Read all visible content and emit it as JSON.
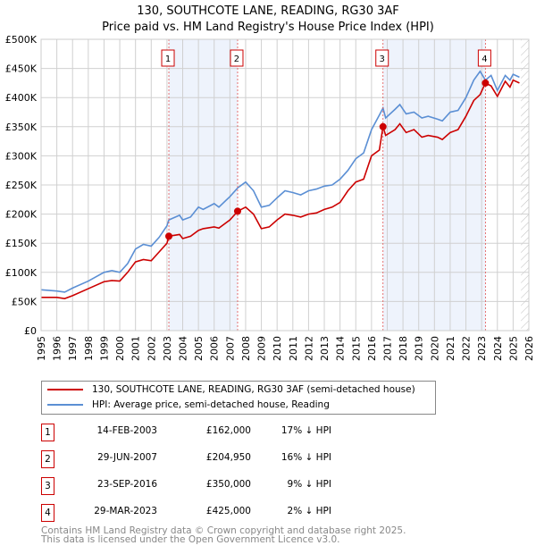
{
  "chart_data": {
    "type": "line",
    "title": "130, SOUTHCOTE LANE, READING, RG30 3AF",
    "subtitle": "Price paid vs. HM Land Registry's House Price Index (HPI)",
    "xlim": [
      1995,
      2026
    ],
    "ylim": [
      0,
      500000
    ],
    "x_ticks": [
      "1995",
      "1996",
      "1997",
      "1998",
      "1999",
      "2000",
      "2001",
      "2002",
      "2003",
      "2004",
      "2005",
      "2006",
      "2007",
      "2008",
      "2009",
      "2010",
      "2011",
      "2012",
      "2013",
      "2014",
      "2015",
      "2016",
      "2017",
      "2018",
      "2019",
      "2020",
      "2021",
      "2022",
      "2023",
      "2024",
      "2025",
      "2026"
    ],
    "y_ticks": [
      {
        "v": 0,
        "label": "£0"
      },
      {
        "v": 50000,
        "label": "£50K"
      },
      {
        "v": 100000,
        "label": "£100K"
      },
      {
        "v": 150000,
        "label": "£150K"
      },
      {
        "v": 200000,
        "label": "£200K"
      },
      {
        "v": 250000,
        "label": "£250K"
      },
      {
        "v": 300000,
        "label": "£300K"
      },
      {
        "v": 350000,
        "label": "£350K"
      },
      {
        "v": 400000,
        "label": "£400K"
      },
      {
        "v": 450000,
        "label": "£450K"
      },
      {
        "v": 500000,
        "label": "£500K"
      }
    ],
    "grid": true,
    "x": [
      1995,
      1996,
      1996.5,
      1997,
      1998,
      1999,
      1999.5,
      2000,
      2000.5,
      2001,
      2001.5,
      2002,
      2002.5,
      2003,
      2003.12,
      2003.8,
      2004,
      2004.5,
      2005,
      2005.3,
      2006,
      2006.3,
      2007,
      2007.5,
      2008,
      2008.5,
      2009,
      2009.5,
      2010,
      2010.5,
      2011,
      2011.5,
      2012,
      2012.5,
      2013,
      2013.5,
      2014,
      2014.5,
      2015,
      2015.5,
      2016,
      2016.5,
      2016.73,
      2016.9,
      2017.5,
      2017.8,
      2018.2,
      2018.7,
      2019.2,
      2019.6,
      2020.2,
      2020.5,
      2021,
      2021.5,
      2022,
      2022.5,
      2022.9,
      2023.24,
      2023.6,
      2024,
      2024.5,
      2024.8,
      2025,
      2025.4
    ],
    "series": [
      {
        "name": "130, SOUTHCOTE LANE, READING, RG30 3AF (semi-detached house)",
        "color": "#cc0000",
        "values": [
          57000,
          57000,
          55000,
          60000,
          72000,
          84000,
          86000,
          85000,
          100000,
          118000,
          122000,
          120000,
          135000,
          150000,
          162000,
          165000,
          158000,
          162000,
          172000,
          175000,
          178000,
          176000,
          190000,
          205000,
          212000,
          200000,
          175000,
          178000,
          190000,
          200000,
          198000,
          195000,
          200000,
          202000,
          208000,
          212000,
          220000,
          240000,
          255000,
          260000,
          300000,
          310000,
          350000,
          335000,
          345000,
          355000,
          340000,
          345000,
          332000,
          335000,
          332000,
          328000,
          340000,
          345000,
          368000,
          395000,
          405000,
          425000,
          420000,
          402000,
          428000,
          418000,
          430000,
          425000
        ]
      },
      {
        "name": "HPI: Average price, semi-detached house, Reading",
        "color": "#5b8fd4",
        "values": [
          70000,
          68000,
          66000,
          73000,
          85000,
          100000,
          103000,
          100000,
          115000,
          140000,
          148000,
          145000,
          160000,
          180000,
          190000,
          198000,
          190000,
          195000,
          212000,
          208000,
          218000,
          212000,
          230000,
          245000,
          255000,
          240000,
          212000,
          215000,
          228000,
          240000,
          237000,
          233000,
          240000,
          243000,
          248000,
          250000,
          260000,
          275000,
          295000,
          305000,
          345000,
          370000,
          382000,
          365000,
          380000,
          388000,
          372000,
          375000,
          365000,
          368000,
          363000,
          360000,
          375000,
          378000,
          400000,
          430000,
          445000,
          430000,
          438000,
          412000,
          438000,
          430000,
          440000,
          435000
        ]
      }
    ],
    "sales": [
      {
        "id": "1",
        "x": 2003.12,
        "y": 162000
      },
      {
        "id": "2",
        "x": 2007.49,
        "y": 204950
      },
      {
        "id": "3",
        "x": 2016.73,
        "y": 350000
      },
      {
        "id": "4",
        "x": 2023.24,
        "y": 425000
      }
    ],
    "shaded": [
      [
        2003.12,
        2007.49
      ],
      [
        2016.73,
        2023.24
      ]
    ],
    "data_end": 2025.4,
    "legend_position": "below"
  },
  "legend": [
    {
      "label": "130, SOUTHCOTE LANE, READING, RG30 3AF (semi-detached house)",
      "color": "#cc0000"
    },
    {
      "label": "HPI: Average price, semi-detached house, Reading",
      "color": "#5b8fd4"
    }
  ],
  "sales_table": [
    {
      "id": "1",
      "date": "14-FEB-2003",
      "price": "£162,000",
      "diff": "17% ↓ HPI"
    },
    {
      "id": "2",
      "date": "29-JUN-2007",
      "price": "£204,950",
      "diff": "16% ↓ HPI"
    },
    {
      "id": "3",
      "date": "23-SEP-2016",
      "price": "£350,000",
      "diff": "9% ↓ HPI"
    },
    {
      "id": "4",
      "date": "29-MAR-2023",
      "price": "£425,000",
      "diff": "2% ↓ HPI"
    }
  ],
  "footer": [
    "Contains HM Land Registry data © Crown copyright and database right 2025.",
    "This data is licensed under the Open Government Licence v3.0."
  ]
}
